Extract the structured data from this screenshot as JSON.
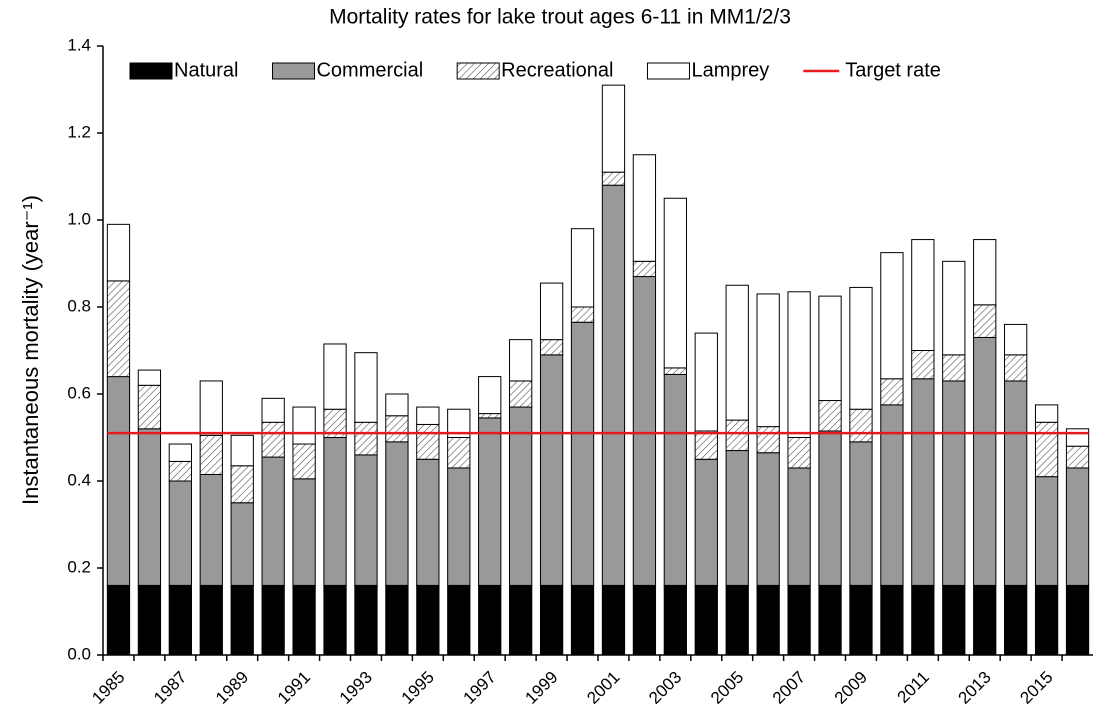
{
  "chart_data": {
    "type": "stacked-bar",
    "title": "Mortality rates for lake trout ages 6-11 in MM1/2/3",
    "y_label": "Instantaneous mortality (year⁻¹)",
    "categories": [
      "1985",
      null,
      "1987",
      null,
      "1989",
      null,
      "1991",
      null,
      "1993",
      null,
      "1995",
      null,
      "1997",
      null,
      "1999",
      null,
      "2001",
      null,
      "2003",
      null,
      "2005",
      null,
      "2007",
      null,
      "2009",
      null,
      "2011",
      null,
      "2013",
      null,
      "2015",
      null
    ],
    "series": [
      {
        "name": "Natural",
        "color": "#000000",
        "values": [
          0.16,
          0.16,
          0.16,
          0.16,
          0.16,
          0.16,
          0.16,
          0.16,
          0.16,
          0.16,
          0.16,
          0.16,
          0.16,
          0.16,
          0.16,
          0.16,
          0.16,
          0.16,
          0.16,
          0.16,
          0.16,
          0.16,
          0.16,
          0.16,
          0.16,
          0.16,
          0.16,
          0.16,
          0.16,
          0.16,
          0.16,
          0.16
        ]
      },
      {
        "name": "Commercial",
        "color": "#999999",
        "values": [
          0.48,
          0.36,
          0.24,
          0.255,
          0.19,
          0.295,
          0.245,
          0.34,
          0.3,
          0.33,
          0.29,
          0.27,
          0.385,
          0.41,
          0.53,
          0.605,
          0.92,
          0.71,
          0.485,
          0.29,
          0.31,
          0.305,
          0.27,
          0.355,
          0.33,
          0.415,
          0.475,
          0.47,
          0.57,
          0.47,
          0.25,
          0.27
        ]
      },
      {
        "name": "Recreational",
        "color": "#555555",
        "hatch": true,
        "values": [
          0.22,
          0.1,
          0.045,
          0.09,
          0.085,
          0.08,
          0.08,
          0.065,
          0.075,
          0.06,
          0.08,
          0.07,
          0.01,
          0.06,
          0.035,
          0.035,
          0.03,
          0.035,
          0.015,
          0.065,
          0.07,
          0.06,
          0.07,
          0.07,
          0.075,
          0.06,
          0.065,
          0.06,
          0.075,
          0.06,
          0.125,
          0.05
        ]
      },
      {
        "name": "Lamprey",
        "color": "#ffffff",
        "values": [
          0.13,
          0.035,
          0.04,
          0.125,
          0.07,
          0.055,
          0.085,
          0.15,
          0.16,
          0.05,
          0.04,
          0.065,
          0.085,
          0.095,
          0.13,
          0.18,
          0.2,
          0.245,
          0.39,
          0.225,
          0.31,
          0.305,
          0.335,
          0.24,
          0.28,
          0.29,
          0.255,
          0.215,
          0.15,
          0.07,
          0.04,
          0.04
        ]
      }
    ],
    "target": {
      "name": "Target rate",
      "value": 0.51,
      "color": "#e41a1c"
    },
    "ylim": [
      0,
      1.4
    ],
    "yticks": [
      {
        "value": 0,
        "label": "0.0"
      },
      0.2,
      0.4,
      0.6,
      0.8,
      {
        "value": 1,
        "label": "1.0"
      },
      1.2,
      1.4
    ],
    "legend": "top"
  }
}
